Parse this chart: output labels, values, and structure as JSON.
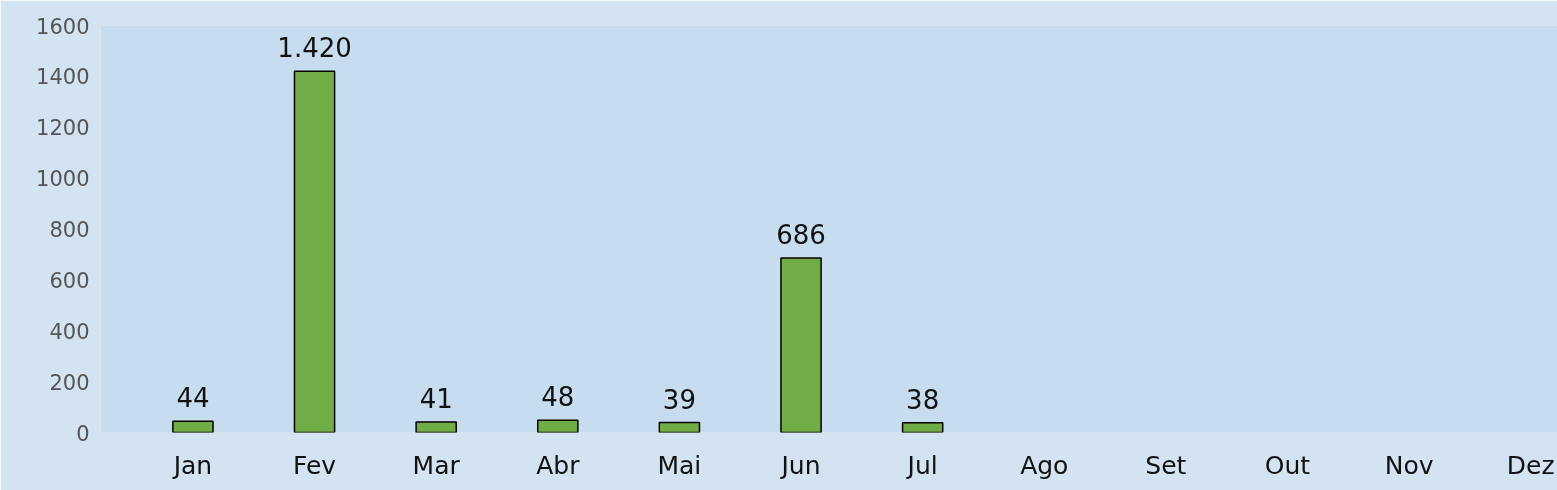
{
  "chart_data": {
    "type": "bar",
    "categories": [
      "Jan",
      "Fev",
      "Mar",
      "Abr",
      "Mai",
      "Jun",
      "Jul",
      "Ago",
      "Set",
      "Out",
      "Nov",
      "Dez"
    ],
    "series": [
      {
        "color": "#70ad47",
        "values": [
          44,
          1420,
          41,
          48,
          39,
          686,
          38,
          null,
          null,
          null,
          null,
          null
        ],
        "value_labels": [
          "44",
          "1.420",
          "41",
          "48",
          "39",
          "686",
          "38",
          null,
          null,
          null,
          null,
          null
        ]
      }
    ],
    "ylim": [
      0,
      1600
    ],
    "yticks": [
      {
        "value": 0,
        "label": "0"
      },
      200,
      400,
      600,
      800,
      1000,
      1200,
      1400,
      1600
    ],
    "grid": false
  }
}
